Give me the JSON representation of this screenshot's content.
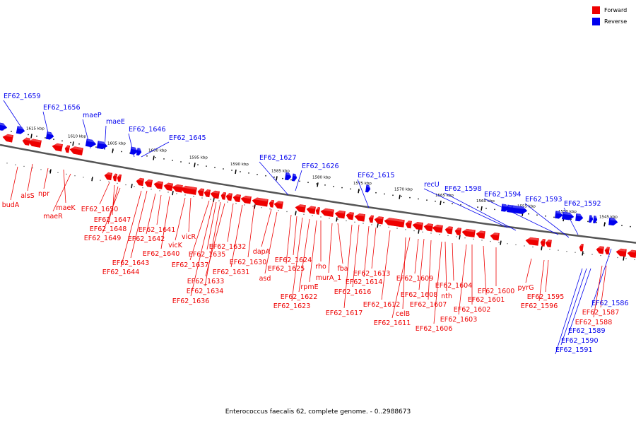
{
  "colors": {
    "forward": "#ee0000",
    "reverse": "#0000ee",
    "backbone": "#888888"
  },
  "legend": [
    {
      "label": "Forward",
      "color": "#ee0000"
    },
    {
      "label": "Reverse",
      "color": "#0000ee"
    }
  ],
  "caption": "Enterococcus faecalis 62, complete genome. - 0..2988673",
  "scale_ticks": [
    "1615 kbp",
    "1610 kbp",
    "1605 kbp",
    "1600 kbp",
    "1595 kbp",
    "1590 kbp",
    "1585 kbp",
    "1580 kbp",
    "1575 kbp",
    "1570 kbp",
    "1565 kbp",
    "1560 kbp",
    "1555 kbp",
    "1550 kbp",
    "1545 kbp"
  ],
  "genes_reverse": [
    "EF62_1659",
    "EF62_1656",
    "maeP",
    "maeE",
    "EF62_1646",
    "EF62_1645",
    "EF62_1627",
    "EF62_1626",
    "EF62_1615",
    "recU",
    "EF62_1598",
    "EF62_1594",
    "EF62_1593",
    "EF62_1592",
    "EF62_1586",
    "EF62_1589",
    "EF62_1590",
    "EF62_1591"
  ],
  "genes_forward": [
    "budA",
    "alsS",
    "npr",
    "maeK",
    "maeR",
    "EF62_1650",
    "EF62_1647",
    "EF62_1648",
    "EF62_1649",
    "EF62_1641",
    "EF62_1642",
    "vicR",
    "vicK",
    "EF62_1640",
    "EF62_1643",
    "EF62_1644",
    "EF62_1632",
    "EF62_1635",
    "EF62_1637",
    "EF62_1630",
    "EF62_1631",
    "EF62_1633",
    "EF62_1634",
    "EF62_1636",
    "dapA",
    "asd",
    "EF62_1624",
    "EF62_1625",
    "rho",
    "rpmE",
    "EF62_1622",
    "EF62_1623",
    "fba",
    "murA_1",
    "EF62_1613",
    "EF62_1614",
    "EF62_1616",
    "EF62_1617",
    "EF62_1612",
    "celB",
    "EF62_1611",
    "EF62_1609",
    "EF62_1608",
    "EF62_1607",
    "nth",
    "EF62_1604",
    "EF62_1603",
    "EF62_1602",
    "EF62_1606",
    "EF62_1601",
    "EF62_1600",
    "pyrG",
    "EF62_1595",
    "EF62_1596",
    "EF62_1587",
    "EF62_1588"
  ]
}
